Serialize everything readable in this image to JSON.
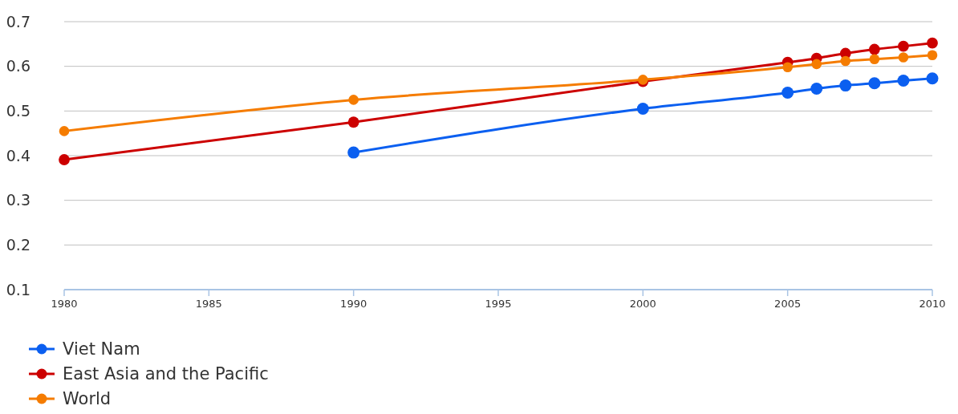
{
  "chart_data": {
    "type": "line",
    "xlim": [
      1980,
      2010
    ],
    "xticks": [
      1980,
      1985,
      1990,
      1995,
      2000,
      2005,
      2010
    ],
    "ylim": [
      0.1,
      0.7
    ],
    "yticks": [
      {
        "value": 0.1,
        "label": "0.1"
      },
      {
        "value": 0.2,
        "label": "0.2"
      },
      {
        "value": 0.3,
        "label": "0.3"
      },
      {
        "value": 0.4,
        "label": "0.4"
      },
      {
        "value": 0.5,
        "label": "0.5"
      },
      {
        "value": 0.6,
        "label": "0.6"
      },
      {
        "value": 0.7,
        "label": "0.7"
      }
    ],
    "grid": "y",
    "legend": "bottom",
    "marker": "circle",
    "line_style": "solid",
    "series": [
      {
        "name": "Viet Nam",
        "color": "#0b5ff0",
        "x": [
          1990,
          2000,
          2005,
          2006,
          2007,
          2008,
          2009,
          2010
        ],
        "values": [
          0.407,
          0.505,
          0.541,
          0.55,
          0.557,
          0.562,
          0.568,
          0.573
        ]
      },
      {
        "name": "East Asia and the Pacific",
        "color": "#cc0000",
        "x": [
          1980,
          1990,
          2000,
          2005,
          2006,
          2007,
          2008,
          2009,
          2010
        ],
        "values": [
          0.391,
          0.475,
          0.566,
          0.609,
          0.618,
          0.629,
          0.638,
          0.645,
          0.652
        ]
      },
      {
        "name": "World",
        "color": "#f57c00",
        "x": [
          1980,
          1990,
          2000,
          2005,
          2006,
          2007,
          2008,
          2009,
          2010
        ],
        "values": [
          0.455,
          0.525,
          0.57,
          0.598,
          0.605,
          0.612,
          0.616,
          0.62,
          0.625
        ]
      }
    ]
  }
}
